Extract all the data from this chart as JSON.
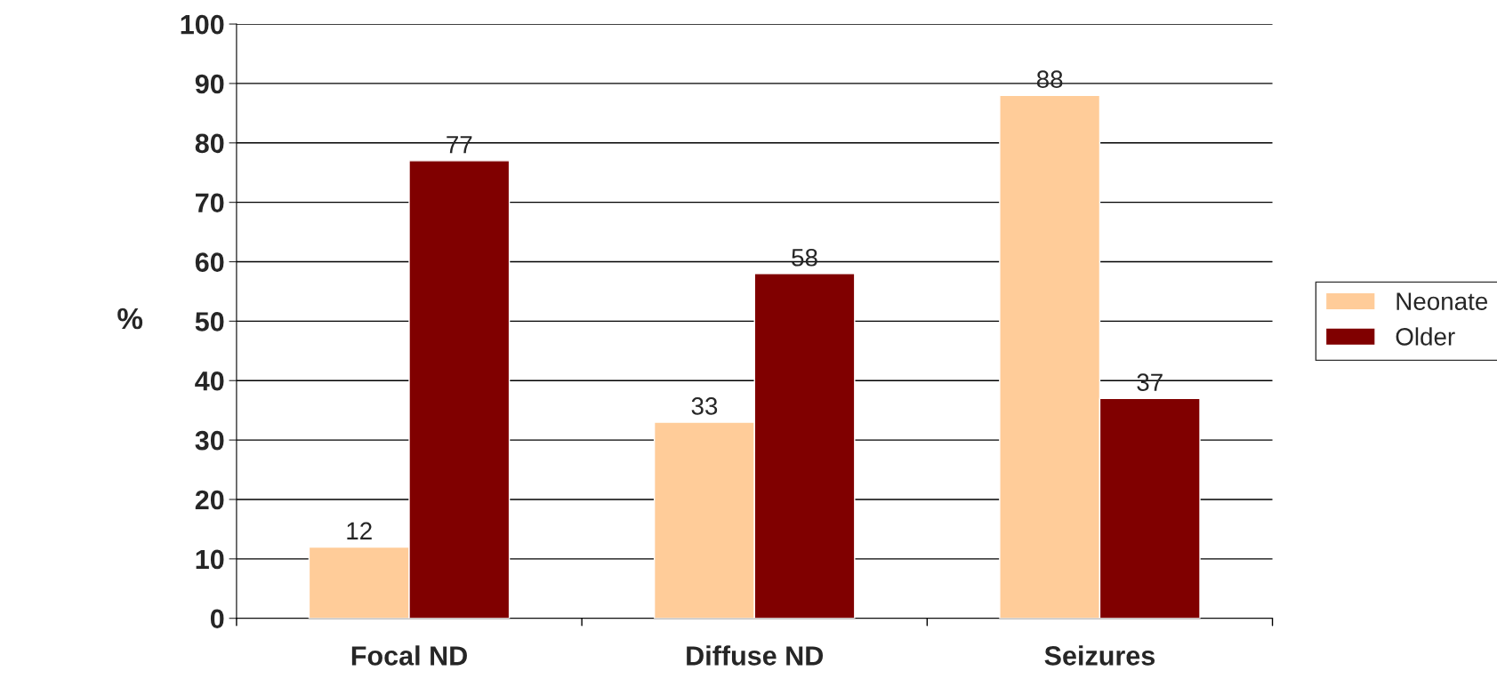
{
  "chart_data": {
    "type": "bar",
    "ylabel": "%",
    "categories": [
      "Focal ND",
      "Diffuse ND",
      "Seizures"
    ],
    "series": [
      {
        "name": "Neonate",
        "color": "#ffcc99",
        "values": [
          12,
          33,
          88
        ]
      },
      {
        "name": "Older",
        "color": "#800000",
        "values": [
          77,
          58,
          37
        ]
      }
    ],
    "ylim": [
      0,
      100
    ],
    "yticks": [
      0,
      10,
      20,
      30,
      40,
      50,
      60,
      70,
      80,
      90,
      100
    ],
    "grid": "y",
    "legend": "right",
    "data_labels": true
  }
}
